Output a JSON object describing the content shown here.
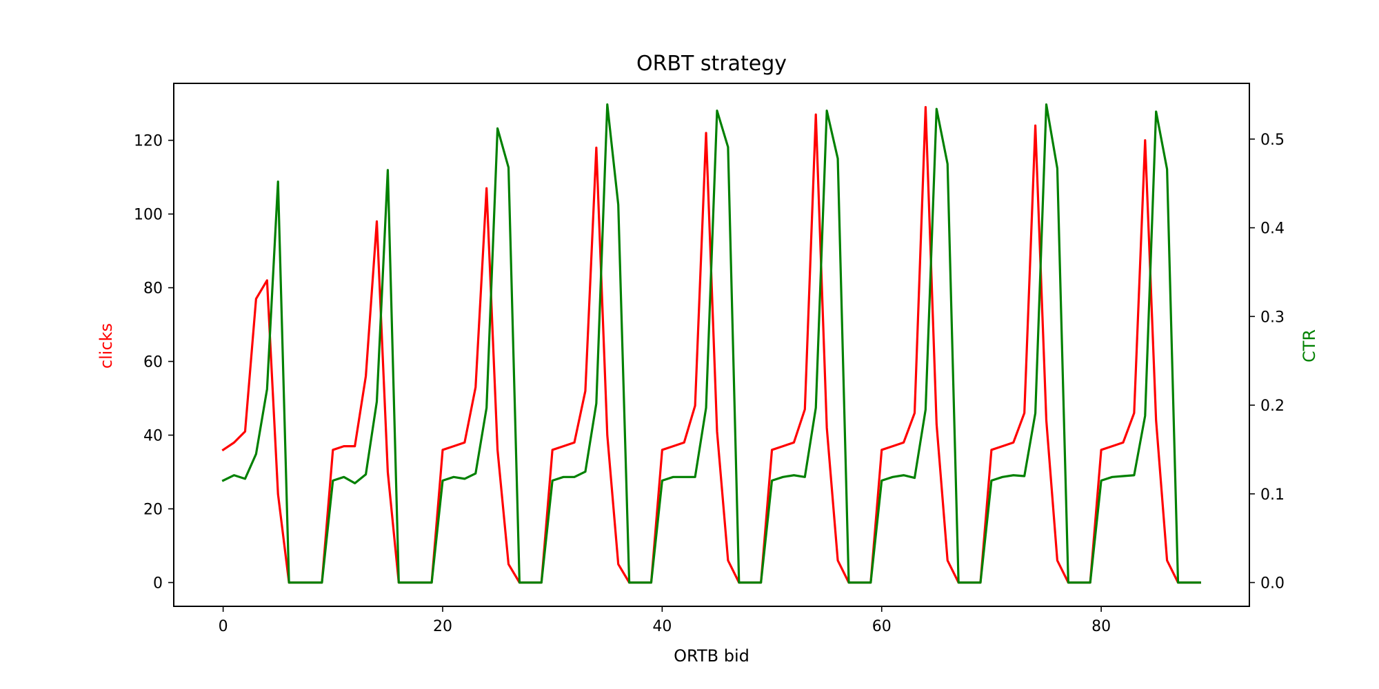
{
  "chart_data": {
    "type": "line",
    "title": "ORBT strategy",
    "xlabel": "ORTB bid",
    "ylabel": "clicks",
    "ylabel_right": "CTR",
    "xlim": [
      -4.5,
      93.5
    ],
    "ylim": [
      -6.45,
      135.45
    ],
    "ylim_right": [
      -0.0268,
      0.5628
    ],
    "x_ticks": [
      0,
      20,
      40,
      60,
      80
    ],
    "y_ticks": [
      0,
      20,
      40,
      60,
      80,
      100,
      120
    ],
    "y_ticks_right": [
      0.0,
      0.1,
      0.2,
      0.3,
      0.4,
      0.5
    ],
    "grid": false,
    "legend": "none",
    "x": [
      0,
      1,
      2,
      3,
      4,
      5,
      6,
      7,
      8,
      9,
      10,
      11,
      12,
      13,
      14,
      15,
      16,
      17,
      18,
      19,
      20,
      21,
      22,
      23,
      24,
      25,
      26,
      27,
      28,
      29,
      30,
      31,
      32,
      33,
      34,
      35,
      36,
      37,
      38,
      39,
      40,
      41,
      42,
      43,
      44,
      45,
      46,
      47,
      48,
      49,
      50,
      51,
      52,
      53,
      54,
      55,
      56,
      57,
      58,
      59,
      60,
      61,
      62,
      63,
      64,
      65,
      66,
      67,
      68,
      69,
      70,
      71,
      72,
      73,
      74,
      75,
      76,
      77,
      78,
      79,
      80,
      81,
      82,
      83,
      84,
      85,
      86,
      87,
      88,
      89
    ],
    "series": [
      {
        "name": "clicks",
        "axis": "left",
        "color": "#ff0000",
        "values": [
          36,
          38,
          41,
          77,
          82,
          24,
          0,
          0,
          0,
          0,
          36,
          37,
          37,
          56,
          98,
          30,
          0,
          0,
          0,
          0,
          36,
          37,
          38,
          53,
          107,
          36,
          5,
          0,
          0,
          0,
          36,
          37,
          38,
          52,
          118,
          40,
          5,
          0,
          0,
          0,
          36,
          37,
          38,
          48,
          122,
          41,
          6,
          0,
          0,
          0,
          36,
          37,
          38,
          47,
          127,
          42,
          6,
          0,
          0,
          0,
          36,
          37,
          38,
          46,
          129,
          43,
          6,
          0,
          0,
          0,
          36,
          37,
          38,
          46,
          124,
          44,
          6,
          0,
          0,
          0,
          36,
          37,
          38,
          46,
          120,
          44,
          6,
          0,
          0,
          0
        ]
      },
      {
        "name": "CTR",
        "axis": "right",
        "color": "#008000",
        "values": [
          0.115,
          0.121,
          0.117,
          0.145,
          0.218,
          0.452,
          0,
          0,
          0,
          0,
          0.115,
          0.119,
          0.112,
          0.122,
          0.204,
          0.465,
          0,
          0,
          0,
          0,
          0.115,
          0.119,
          0.117,
          0.123,
          0.197,
          0.512,
          0.468,
          0,
          0,
          0,
          0.115,
          0.119,
          0.119,
          0.125,
          0.202,
          0.539,
          0.426,
          0,
          0,
          0,
          0.115,
          0.119,
          0.119,
          0.119,
          0.197,
          0.532,
          0.491,
          0,
          0,
          0,
          0.115,
          0.119,
          0.121,
          0.119,
          0.197,
          0.532,
          0.478,
          0,
          0,
          0,
          0.115,
          0.119,
          0.121,
          0.118,
          0.195,
          0.534,
          0.472,
          0,
          0,
          0,
          0.115,
          0.119,
          0.121,
          0.12,
          0.191,
          0.539,
          0.467,
          0,
          0,
          0,
          0.115,
          0.119,
          0.12,
          0.121,
          0.188,
          0.531,
          0.466,
          0,
          0,
          0
        ]
      }
    ]
  }
}
